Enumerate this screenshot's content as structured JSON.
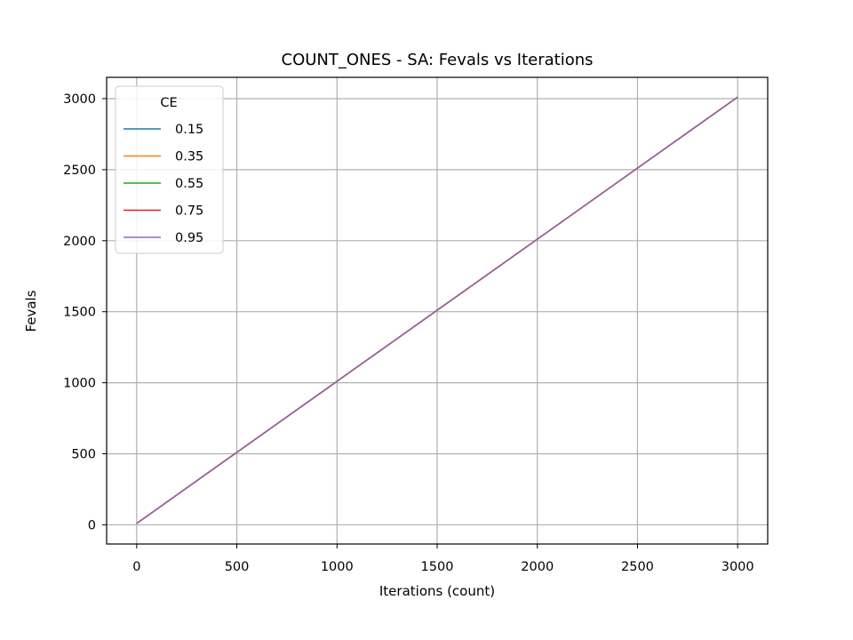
{
  "chart_data": {
    "type": "line",
    "title": "COUNT_ONES - SA: Fevals vs Iterations",
    "xlabel": "Iterations (count)",
    "ylabel": "Fevals",
    "xlim": [
      -150,
      3150
    ],
    "ylim": [
      -135,
      3150
    ],
    "xticks": [
      0,
      500,
      1000,
      1500,
      2000,
      2500,
      3000
    ],
    "yticks": [
      0,
      500,
      1000,
      1500,
      2000,
      2500,
      3000
    ],
    "grid": true,
    "legend": {
      "title": "CE",
      "placement": "upper-left"
    },
    "series": [
      {
        "name": "0.15",
        "color": "#1f77b4",
        "x": [
          0,
          3000
        ],
        "y": [
          10,
          3011
        ]
      },
      {
        "name": "0.35",
        "color": "#ff7f0e",
        "x": [
          0,
          3000
        ],
        "y": [
          10,
          3011
        ]
      },
      {
        "name": "0.55",
        "color": "#2ca02c",
        "x": [
          0,
          3000
        ],
        "y": [
          10,
          3011
        ]
      },
      {
        "name": "0.75",
        "color": "#d62728",
        "x": [
          0,
          3000
        ],
        "y": [
          10,
          3011
        ]
      },
      {
        "name": "0.95",
        "color": "#9467bd",
        "x": [
          0,
          3000
        ],
        "y": [
          10,
          3011
        ]
      }
    ]
  }
}
